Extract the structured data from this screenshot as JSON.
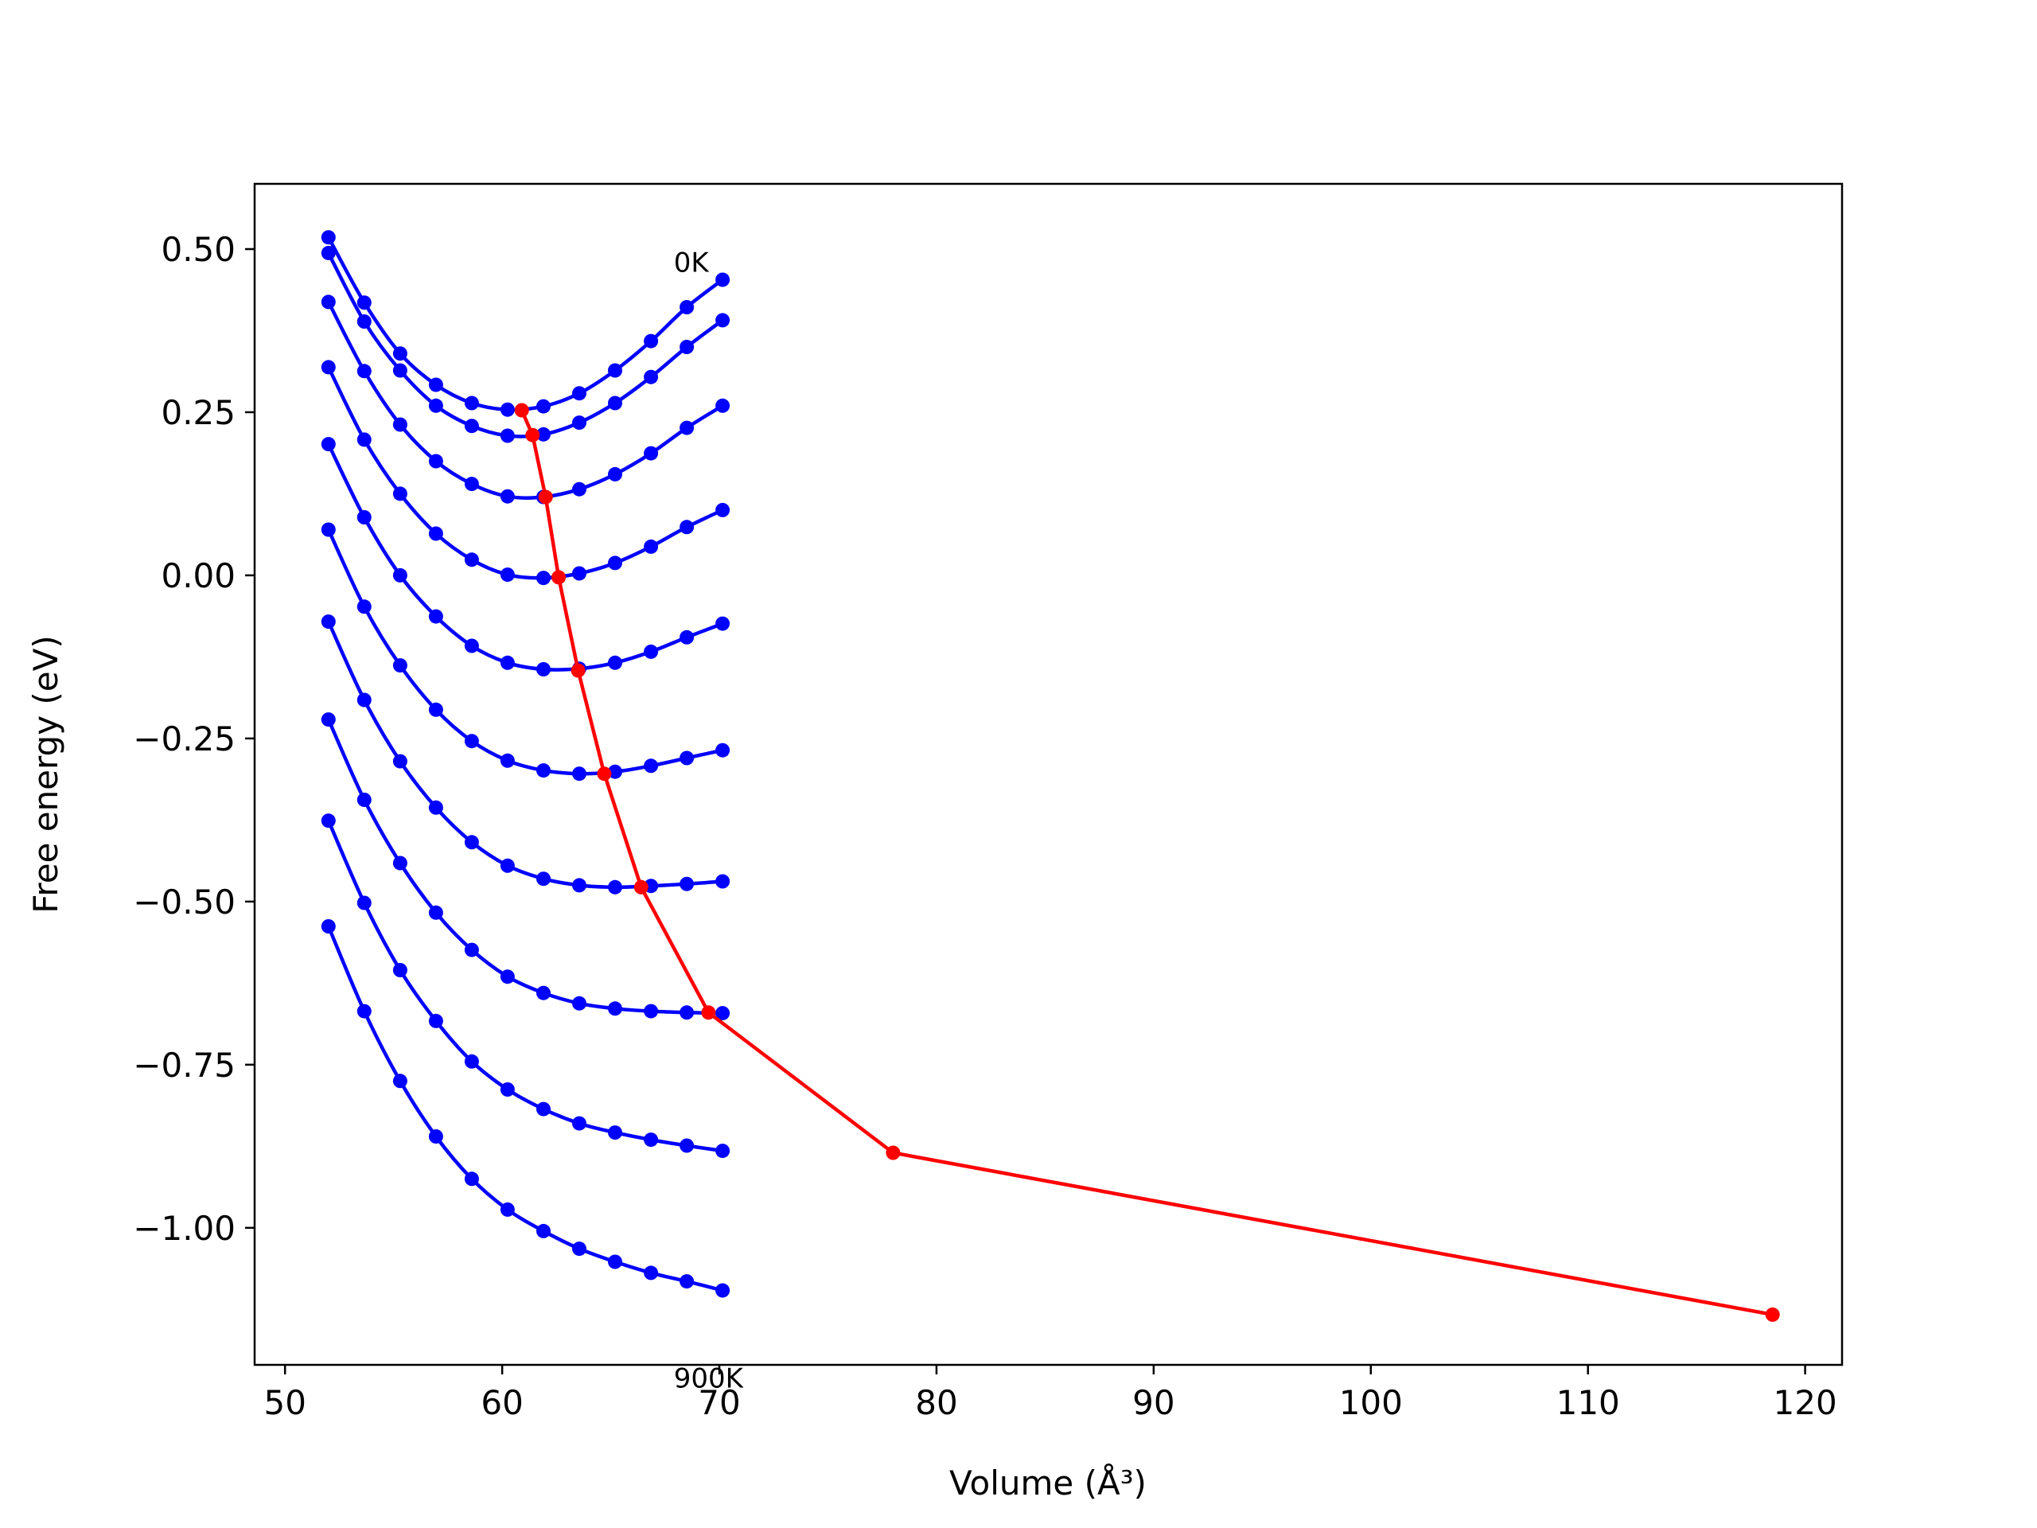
{
  "chart_data": {
    "type": "line",
    "title": "",
    "xlabel": "Volume (Å³)",
    "ylabel": "Free energy (eV)",
    "xlim": [
      48.6,
      121.7
    ],
    "ylim": [
      -1.21,
      0.6
    ],
    "xticks": [
      50,
      60,
      70,
      80,
      90,
      100,
      110,
      120
    ],
    "xtick_labels": [
      "50",
      "60",
      "70",
      "80",
      "90",
      "100",
      "110",
      "120"
    ],
    "yticks": [
      0.5,
      0.25,
      0.0,
      -0.25,
      -0.5,
      -0.75,
      -1.0
    ],
    "ytick_labels": [
      "0.50",
      "0.25",
      "0.00",
      "−0.25",
      "−0.50",
      "−0.75",
      "−1.00"
    ],
    "grid": false,
    "annotations": [
      {
        "text": "0K",
        "x": 67.9,
        "y": 0.465
      },
      {
        "text": "900K",
        "x": 67.9,
        "y": -1.245
      }
    ],
    "x": [
      52.0,
      53.65,
      55.3,
      56.95,
      58.6,
      60.25,
      61.9,
      63.55,
      65.2,
      66.85,
      68.5,
      70.15
    ],
    "series": [
      {
        "values": [
          0.518,
          0.418,
          0.34,
          0.292,
          0.264,
          0.254,
          0.259,
          0.279,
          0.314,
          0.359,
          0.411,
          0.453
        ],
        "color": "#0000ff"
      },
      {
        "values": [
          0.494,
          0.389,
          0.314,
          0.26,
          0.229,
          0.214,
          0.216,
          0.234,
          0.264,
          0.304,
          0.35,
          0.391
        ],
        "color": "#0000ff"
      },
      {
        "values": [
          0.419,
          0.313,
          0.231,
          0.175,
          0.14,
          0.121,
          0.12,
          0.132,
          0.155,
          0.187,
          0.226,
          0.26
        ],
        "color": "#0000ff"
      },
      {
        "values": [
          0.319,
          0.208,
          0.125,
          0.064,
          0.024,
          0.001,
          -0.004,
          0.003,
          0.019,
          0.044,
          0.074,
          0.1
        ],
        "color": "#0000ff"
      },
      {
        "values": [
          0.201,
          0.089,
          0.0,
          -0.063,
          -0.108,
          -0.134,
          -0.144,
          -0.143,
          -0.134,
          -0.117,
          -0.095,
          -0.074
        ],
        "color": "#0000ff"
      },
      {
        "values": [
          0.07,
          -0.048,
          -0.138,
          -0.206,
          -0.254,
          -0.284,
          -0.299,
          -0.304,
          -0.301,
          -0.292,
          -0.28,
          -0.268
        ],
        "color": "#0000ff"
      },
      {
        "values": [
          -0.071,
          -0.191,
          -0.285,
          -0.356,
          -0.409,
          -0.445,
          -0.465,
          -0.475,
          -0.478,
          -0.476,
          -0.473,
          -0.469
        ],
        "color": "#0000ff"
      },
      {
        "values": [
          -0.221,
          -0.344,
          -0.441,
          -0.517,
          -0.574,
          -0.615,
          -0.64,
          -0.656,
          -0.664,
          -0.668,
          -0.67,
          -0.671
        ],
        "color": "#0000ff"
      },
      {
        "values": [
          -0.376,
          -0.502,
          -0.605,
          -0.683,
          -0.745,
          -0.788,
          -0.818,
          -0.84,
          -0.854,
          -0.865,
          -0.874,
          -0.882
        ],
        "color": "#0000ff"
      },
      {
        "values": [
          -0.538,
          -0.668,
          -0.775,
          -0.86,
          -0.925,
          -0.972,
          -1.005,
          -1.032,
          -1.052,
          -1.069,
          -1.082,
          -1.096
        ],
        "color": "#0000ff"
      }
    ],
    "minima_line": {
      "color": "#ff0000",
      "x": [
        60.9,
        61.4,
        62.0,
        62.6,
        63.5,
        64.7,
        66.4,
        69.5,
        78.0,
        118.5
      ],
      "y": [
        0.253,
        0.215,
        0.12,
        -0.003,
        -0.146,
        -0.304,
        -0.478,
        -0.67,
        -0.885,
        -1.133
      ]
    }
  }
}
